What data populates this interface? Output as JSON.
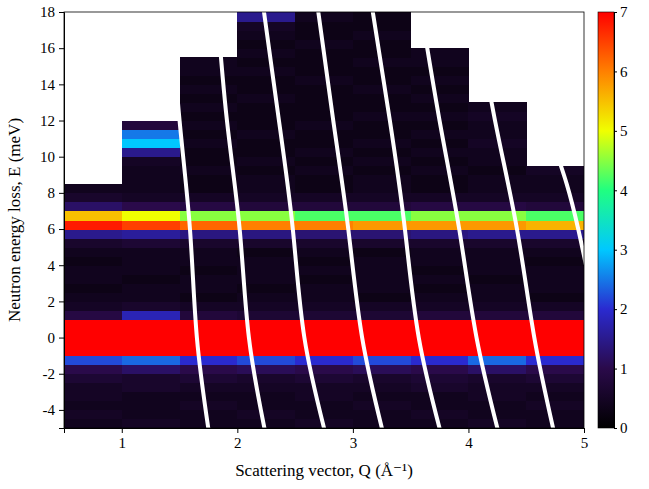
{
  "chart_data": {
    "type": "heatmap",
    "x_label": "Scattering vector, Q (Å⁻¹)",
    "y_label": "Neutron energy loss, E (meV)",
    "xlim": [
      0.5,
      5
    ],
    "xticks": [
      1,
      2,
      3,
      4,
      5
    ],
    "ylim": [
      -5,
      18
    ],
    "yticks": [
      -4,
      -2,
      0,
      2,
      4,
      6,
      8,
      10,
      12,
      14,
      16,
      18
    ],
    "colorbar": {
      "lim": [
        0,
        7
      ],
      "ticks": [
        0,
        1,
        2,
        3,
        4,
        5,
        6,
        7
      ]
    },
    "heatmap": {
      "q_edges": [
        0.5,
        1,
        1.5,
        2,
        2.5,
        3,
        3.5,
        4,
        4.5,
        5
      ],
      "e_edges": [
        -5,
        -4.5,
        -4,
        -3.5,
        -3,
        -2.5,
        -2,
        -1.5,
        -1,
        -0.5,
        0,
        0.5,
        1,
        1.5,
        2,
        2.5,
        3,
        3.5,
        4,
        4.5,
        5,
        5.5,
        6,
        6.5,
        7,
        7.5,
        8,
        8.5,
        9,
        9.5,
        10,
        10.5,
        11,
        11.5,
        12,
        12.5,
        13,
        13.5,
        14,
        14.5,
        15,
        15.5,
        16,
        16.5,
        17,
        17.5,
        18
      ],
      "values": [
        [
          0.4,
          0.5,
          0.4,
          0.4,
          0.5,
          0.4,
          0.4,
          0.5,
          0.4
        ],
        [
          0.5,
          0.4,
          0.4,
          0.5,
          0.4,
          0.4,
          0.5,
          0.4,
          0.4
        ],
        [
          0.4,
          0.4,
          0.5,
          0.4,
          0.4,
          0.5,
          0.4,
          0.4,
          0.5
        ],
        [
          0.5,
          0.4,
          0.4,
          0.4,
          0.5,
          0.4,
          0.4,
          0.5,
          0.4
        ],
        [
          0.5,
          0.6,
          0.5,
          0.5,
          0.5,
          0.5,
          0.6,
          0.5,
          0.5
        ],
        [
          0.7,
          0.6,
          0.7,
          0.6,
          0.7,
          0.6,
          0.7,
          0.6,
          0.7
        ],
        [
          1.0,
          1.2,
          1.0,
          1.1,
          1.0,
          1.1,
          1.0,
          1.2,
          1.0
        ],
        [
          2.2,
          2.4,
          2.0,
          2.2,
          2.0,
          2.2,
          2.0,
          2.4,
          2.0
        ],
        [
          7.5,
          7.5,
          7.5,
          7.5,
          7.5,
          7.5,
          7.5,
          7.5,
          7.5
        ],
        [
          7.5,
          7.5,
          7.5,
          7.5,
          7.5,
          7.5,
          7.5,
          7.5,
          7.5
        ],
        [
          7.5,
          7.5,
          7.5,
          7.5,
          7.5,
          7.5,
          7.5,
          7.5,
          7.5
        ],
        [
          7.2,
          7.3,
          7.2,
          7.2,
          7.2,
          7.2,
          7.2,
          7.3,
          7.2
        ],
        [
          0.9,
          1.8,
          0.8,
          0.7,
          0.7,
          0.7,
          0.8,
          0.8,
          0.8
        ],
        [
          0.5,
          0.6,
          0.5,
          0.5,
          0.5,
          0.5,
          0.5,
          0.5,
          0.5
        ],
        [
          0.4,
          0.4,
          0.3,
          0.4,
          0.4,
          0.3,
          0.4,
          0.4,
          0.3
        ],
        [
          0.3,
          0.4,
          0.4,
          0.3,
          0.4,
          0.4,
          0.3,
          0.4,
          0.4
        ],
        [
          0.4,
          0.3,
          0.4,
          0.4,
          0.3,
          0.4,
          0.4,
          0.3,
          0.4
        ],
        [
          0.4,
          0.4,
          0.3,
          0.4,
          0.4,
          0.4,
          0.3,
          0.4,
          0.4
        ],
        [
          0.3,
          0.4,
          0.4,
          0.4,
          0.3,
          0.4,
          0.4,
          0.4,
          0.3
        ],
        [
          0.4,
          0.4,
          0.4,
          0.3,
          0.4,
          0.3,
          0.4,
          0.4,
          0.4
        ],
        [
          0.6,
          0.7,
          0.6,
          0.6,
          0.6,
          0.6,
          0.6,
          0.6,
          0.6
        ],
        [
          1.5,
          1.6,
          1.4,
          1.4,
          1.3,
          1.3,
          1.4,
          1.5,
          1.5
        ],
        [
          6.8,
          6.5,
          6.2,
          6.0,
          6.0,
          5.8,
          5.8,
          5.8,
          5.6
        ],
        [
          5.5,
          5.0,
          4.5,
          4.5,
          4.2,
          4.2,
          4.5,
          4.5,
          4.2
        ],
        [
          1.2,
          1.0,
          0.9,
          0.8,
          0.8,
          0.8,
          0.9,
          0.9,
          0.8
        ],
        [
          0.6,
          0.5,
          0.5,
          0.5,
          0.5,
          0.5,
          0.5,
          0.5,
          0.5
        ],
        [
          0.4,
          0.4,
          0.3,
          0.4,
          0.3,
          0.4,
          0.3,
          0.4,
          0.4
        ],
        [
          null,
          0.4,
          0.3,
          0.4,
          0.3,
          0.4,
          0.3,
          0.4,
          0.4
        ],
        [
          null,
          0.4,
          0.4,
          0.3,
          0.4,
          0.3,
          0.4,
          0.3,
          0.5
        ],
        [
          null,
          0.5,
          0.3,
          0.4,
          0.3,
          0.4,
          0.3,
          0.4,
          null
        ],
        [
          null,
          1.5,
          0.3,
          0.3,
          0.4,
          0.3,
          0.4,
          0.4,
          null
        ],
        [
          null,
          3.0,
          0.4,
          0.3,
          0.3,
          0.4,
          0.3,
          0.5,
          null
        ],
        [
          null,
          2.5,
          0.3,
          0.4,
          0.3,
          0.3,
          0.4,
          0.4,
          null
        ],
        [
          null,
          0.8,
          0.4,
          0.3,
          0.4,
          0.3,
          0.3,
          0.4,
          null
        ],
        [
          null,
          null,
          0.3,
          0.3,
          0.3,
          0.4,
          0.4,
          0.5,
          null
        ],
        [
          null,
          null,
          0.4,
          0.3,
          0.3,
          0.3,
          0.3,
          0.4,
          null
        ],
        [
          null,
          null,
          0.3,
          0.4,
          0.3,
          0.3,
          0.4,
          null,
          null
        ],
        [
          null,
          null,
          0.4,
          0.3,
          0.3,
          0.4,
          0.3,
          null,
          null
        ],
        [
          null,
          null,
          0.3,
          0.3,
          0.4,
          0.3,
          0.4,
          null,
          null
        ],
        [
          null,
          null,
          0.4,
          0.4,
          0.3,
          0.3,
          0.3,
          null,
          null
        ],
        [
          null,
          null,
          0.4,
          0.3,
          0.3,
          0.4,
          0.4,
          null,
          null
        ],
        [
          null,
          null,
          null,
          0.4,
          0.3,
          0.3,
          0.4,
          null,
          null
        ],
        [
          null,
          null,
          null,
          0.3,
          0.4,
          0.3,
          null,
          null,
          null
        ],
        [
          null,
          null,
          null,
          0.4,
          0.3,
          0.4,
          null,
          null,
          null
        ],
        [
          null,
          null,
          null,
          0.5,
          0.3,
          0.3,
          null,
          null,
          null
        ],
        [
          null,
          null,
          null,
          1.5,
          0.4,
          0.3,
          null,
          null,
          null
        ]
      ]
    },
    "curves": [
      {
        "q": [
          1.76,
          1.65,
          1.59,
          1.5,
          1.42
        ],
        "e": [
          -5.5,
          0,
          6,
          12,
          18.5
        ]
      },
      {
        "q": [
          2.25,
          2.1,
          2.02,
          1.91,
          1.82
        ],
        "e": [
          -5.5,
          0,
          6,
          12,
          18.5
        ]
      },
      {
        "q": [
          2.77,
          2.58,
          2.48,
          2.36,
          2.22
        ],
        "e": [
          -5.5,
          0,
          6,
          12,
          18.5
        ]
      },
      {
        "q": [
          3.27,
          3.08,
          2.96,
          2.83,
          2.69
        ],
        "e": [
          -5.5,
          0,
          6,
          12,
          18.5
        ]
      },
      {
        "q": [
          3.77,
          3.57,
          3.45,
          3.32,
          3.16
        ],
        "e": [
          -5.5,
          0,
          6,
          12,
          18.5
        ]
      },
      {
        "q": [
          4.27,
          4.07,
          3.92,
          3.75,
          3.58
        ],
        "e": [
          -5.5,
          0,
          6,
          12,
          18.5
        ]
      },
      {
        "q": [
          4.75,
          4.57,
          4.42,
          4.23,
          4.05
        ],
        "e": [
          -5.5,
          0,
          6,
          12,
          18.5
        ]
      },
      {
        "q": [
          5.05,
          4.95,
          4.85,
          4.72
        ],
        "e": [
          3,
          6,
          8.5,
          11
        ]
      }
    ]
  }
}
